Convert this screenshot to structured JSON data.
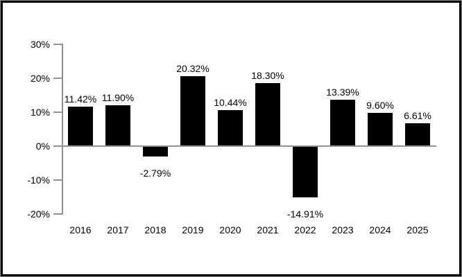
{
  "chart_data": {
    "type": "bar",
    "title": "",
    "xlabel": "",
    "ylabel": "",
    "categories": [
      "2016",
      "2017",
      "2018",
      "2019",
      "2020",
      "2021",
      "2022",
      "2023",
      "2024",
      "2025"
    ],
    "values": [
      11.42,
      11.9,
      -2.79,
      20.32,
      10.44,
      18.3,
      -14.91,
      13.39,
      9.6,
      6.61
    ],
    "value_labels": [
      "11.42%",
      "11.90%",
      "-2.79%",
      "20.32%",
      "10.44%",
      "18.30%",
      "-14.91%",
      "13.39%",
      "9.60%",
      "6.61%"
    ],
    "ylim": [
      -20,
      30
    ],
    "y_ticks": [
      30,
      20,
      10,
      0,
      -10,
      -20
    ],
    "y_tick_labels": [
      "30%",
      "20%",
      "10%",
      "0%",
      "-10%",
      "-20%"
    ],
    "grid": false,
    "legend": null,
    "bar_color": "#000000",
    "axis_color": "#919191",
    "text_color": "#000000",
    "background_color": "#ffffff",
    "frame_color": "#000000"
  }
}
